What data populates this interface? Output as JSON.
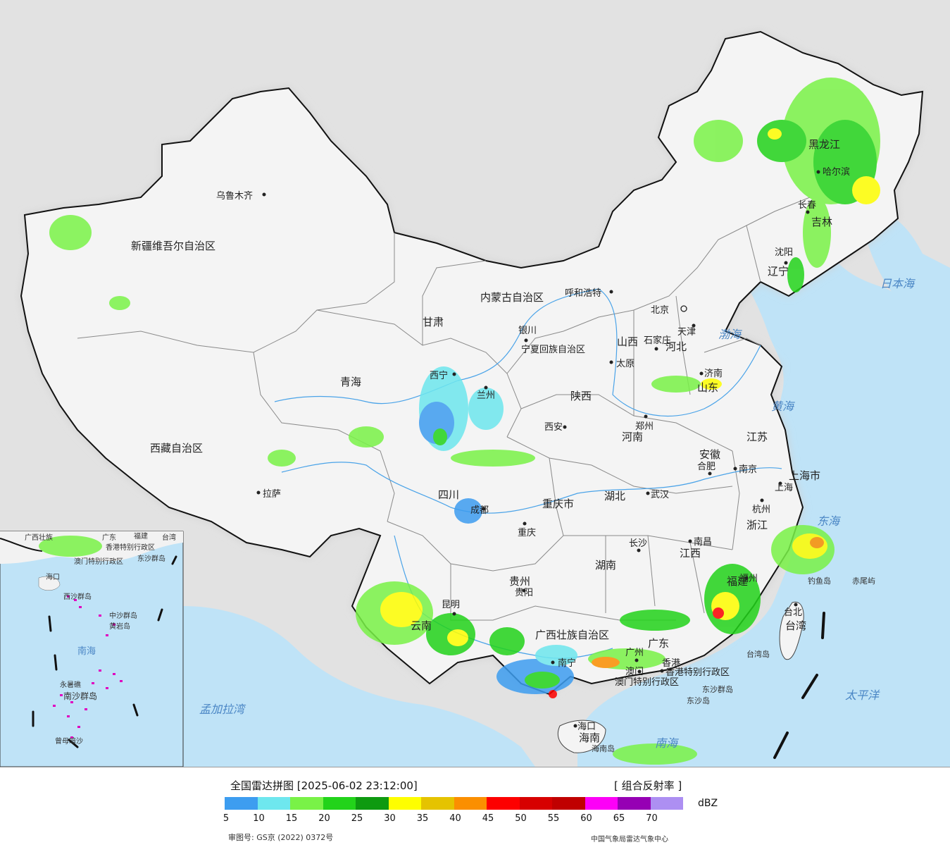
{
  "legend": {
    "title": "全国雷达拼图 [2025-06-02 23:12:00]",
    "product": "[ 组合反射率 ]",
    "unit": "dBZ",
    "ticks": [
      "5",
      "10",
      "15",
      "20",
      "25",
      "30",
      "35",
      "40",
      "45",
      "50",
      "55",
      "60",
      "65",
      "70"
    ],
    "colors": [
      "#3d9df0",
      "#6ee7ee",
      "#79f247",
      "#22d31a",
      "#0e9a10",
      "#fefe00",
      "#e5c300",
      "#fb8f00",
      "#fd0000",
      "#d70000",
      "#c00000",
      "#fd00f7",
      "#9600b4",
      "#ad8ff2"
    ],
    "approval_number": "审图号: GS京 (2022) 0372号",
    "producer": "中国气象局雷达气象中心"
  },
  "colors": {
    "ocean": "#bfe3f7",
    "land_china": "#f2f2f2",
    "land_other": "#e2e2e2",
    "border": "#111111",
    "province_border": "#888888",
    "river": "#4aa3e8"
  },
  "map": {
    "provinces": [
      "新疆维吾尔自治区",
      "西藏自治区",
      "青海",
      "甘肃",
      "内蒙古自治区",
      "黑龙江",
      "吉林",
      "辽宁",
      "河北",
      "山西",
      "陕西",
      "宁夏回族自治区",
      "四川",
      "云南",
      "贵州",
      "广西壮族自治区",
      "广东",
      "湖南",
      "湖北",
      "河南",
      "山东",
      "江苏",
      "安徽",
      "浙江",
      "江西",
      "福建",
      "重庆市",
      "上海市",
      "台湾",
      "海南",
      "香港特别行政区",
      "澳门特别行政区"
    ],
    "cities": [
      "乌鲁木齐",
      "拉萨",
      "西宁",
      "兰州",
      "银川",
      "呼和浩特",
      "北京",
      "天津",
      "石家庄",
      "太原",
      "济南",
      "郑州",
      "西安",
      "成都",
      "重庆",
      "武汉",
      "合肥",
      "南京",
      "上海",
      "杭州",
      "长沙",
      "南昌",
      "福州",
      "台北",
      "贵阳",
      "昆明",
      "南宁",
      "广州",
      "香港",
      "澳门",
      "海口",
      "哈尔滨",
      "长春",
      "沈阳"
    ],
    "seas": [
      "渤海",
      "黄海",
      "东海",
      "日本海",
      "南海",
      "太平洋",
      "孟加拉湾"
    ],
    "islands": [
      "钓鱼岛",
      "赤尾屿",
      "东沙群岛",
      "东沙岛",
      "台湾岛",
      "海南岛"
    ],
    "inset": {
      "labels": [
        "广西壮族",
        "广东",
        "福建",
        "台湾",
        "香港特别行政区",
        "澳门特别行政区",
        "东沙群岛",
        "海口",
        "西沙群岛",
        "中沙群岛",
        "黄岩岛",
        "南海",
        "永暑礁",
        "南沙群岛",
        "曾母暗沙"
      ]
    }
  }
}
